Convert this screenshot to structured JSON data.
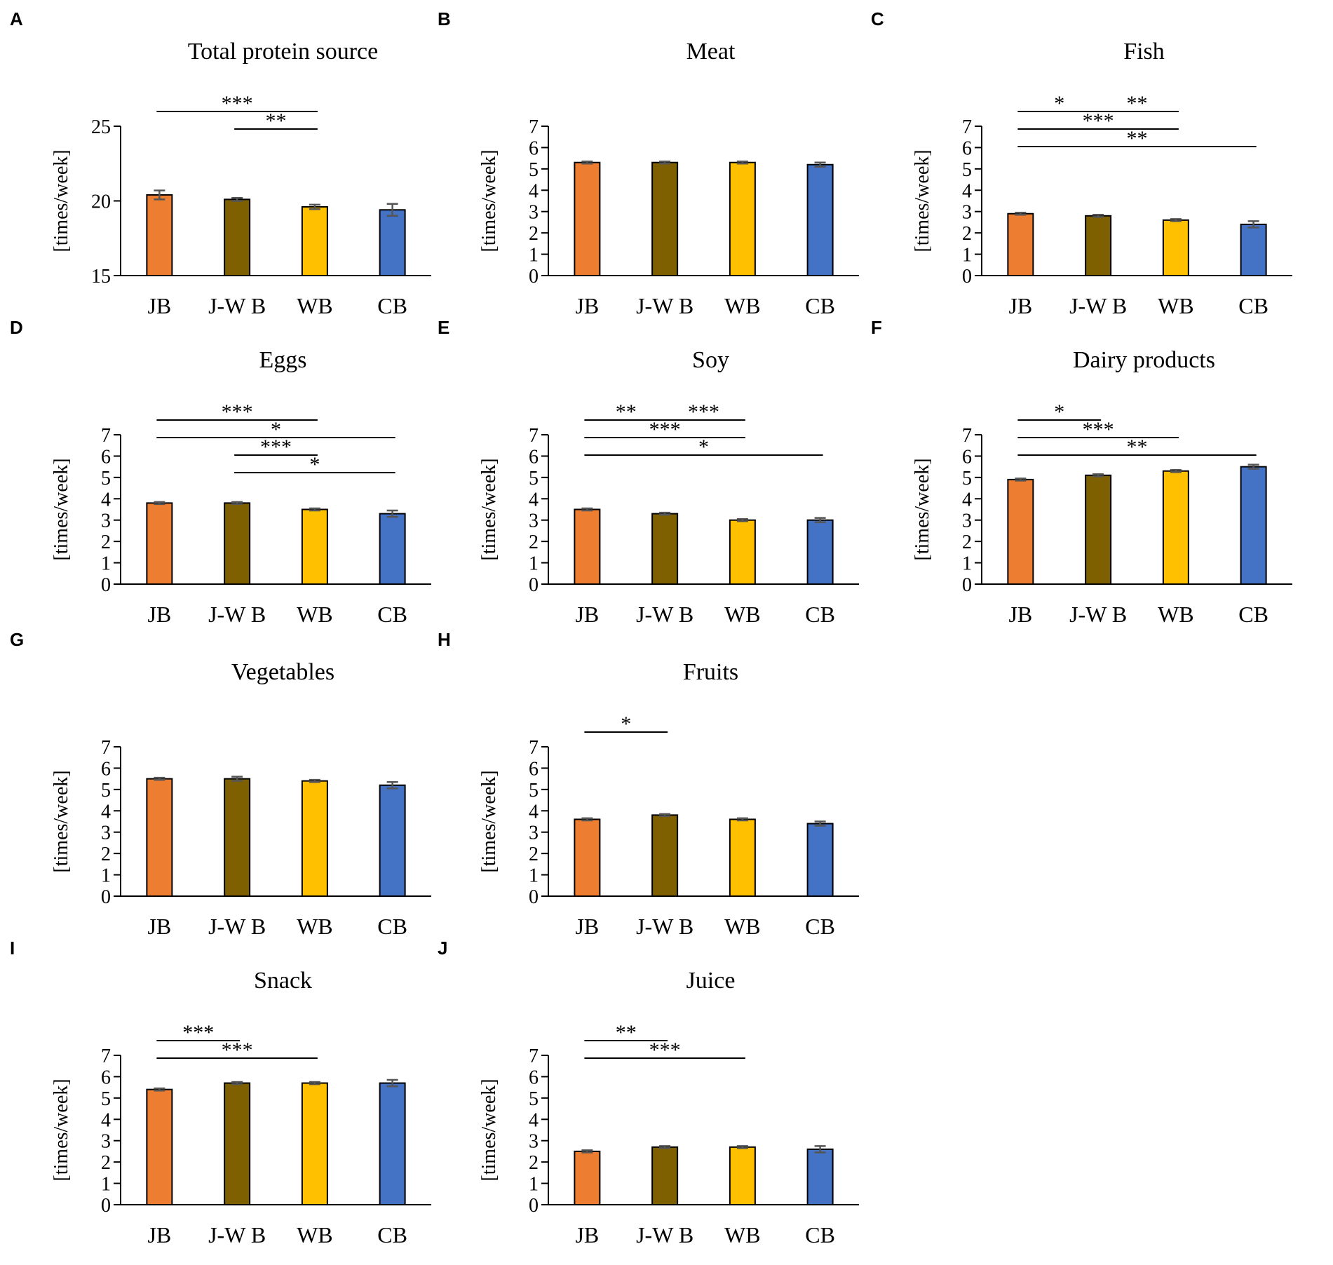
{
  "figure": {
    "width": 1901,
    "height": 1804
  },
  "colors": {
    "JB": "#ED7D31",
    "J-W B": "#7F6000",
    "WB": "#FFC000",
    "CB": "#4472C4"
  },
  "chart_data": [
    {
      "letter": "A",
      "type": "bar",
      "title": "Total protein source",
      "categories": [
        "JB",
        "J-W B",
        "WB",
        "CB"
      ],
      "values": [
        20.4,
        20.1,
        19.6,
        19.4
      ],
      "errors": [
        0.3,
        0.1,
        0.15,
        0.4
      ],
      "ylabel": "[times/week]",
      "ylim": [
        15,
        25
      ],
      "yticks": [
        15,
        20,
        25
      ],
      "significance": [
        {
          "from": 0,
          "to": 2,
          "label": "***"
        },
        {
          "from": 1,
          "to": 2,
          "label": "**"
        }
      ]
    },
    {
      "letter": "B",
      "type": "bar",
      "title": "Meat",
      "categories": [
        "JB",
        "J-W B",
        "WB",
        "CB"
      ],
      "values": [
        5.3,
        5.3,
        5.3,
        5.2
      ],
      "errors": [
        0.05,
        0.05,
        0.05,
        0.1
      ],
      "ylabel": "[times/week]",
      "ylim": [
        0,
        7
      ],
      "yticks": [
        0,
        1,
        2,
        3,
        4,
        5,
        6,
        7
      ],
      "significance": []
    },
    {
      "letter": "C",
      "type": "bar",
      "title": "Fish",
      "categories": [
        "JB",
        "J-W B",
        "WB",
        "CB"
      ],
      "values": [
        2.9,
        2.8,
        2.6,
        2.4
      ],
      "errors": [
        0.05,
        0.05,
        0.05,
        0.15
      ],
      "ylabel": "[times/week]",
      "ylim": [
        0,
        7
      ],
      "yticks": [
        0,
        1,
        2,
        3,
        4,
        5,
        6,
        7
      ],
      "significance": [
        {
          "from": 0,
          "to": 1,
          "label": "*"
        },
        {
          "from": 1,
          "to": 2,
          "label": "**"
        },
        {
          "from": 0,
          "to": 2,
          "label": "***"
        },
        {
          "from": 0,
          "to": 3,
          "label": "**"
        }
      ]
    },
    {
      "letter": "D",
      "type": "bar",
      "title": "Eggs",
      "categories": [
        "JB",
        "J-W B",
        "WB",
        "CB"
      ],
      "values": [
        3.8,
        3.8,
        3.5,
        3.3
      ],
      "errors": [
        0.05,
        0.05,
        0.05,
        0.15
      ],
      "ylabel": "[times/week]",
      "ylim": [
        0,
        7
      ],
      "yticks": [
        0,
        1,
        2,
        3,
        4,
        5,
        6,
        7
      ],
      "significance": [
        {
          "from": 0,
          "to": 2,
          "label": "***"
        },
        {
          "from": 0,
          "to": 3,
          "label": "*"
        },
        {
          "from": 1,
          "to": 2,
          "label": "***"
        },
        {
          "from": 1,
          "to": 3,
          "label": "*"
        }
      ]
    },
    {
      "letter": "E",
      "type": "bar",
      "title": "Soy",
      "categories": [
        "JB",
        "J-W B",
        "WB",
        "CB"
      ],
      "values": [
        3.5,
        3.3,
        3.0,
        3.0
      ],
      "errors": [
        0.05,
        0.05,
        0.05,
        0.1
      ],
      "ylabel": "[times/week]",
      "ylim": [
        0,
        7
      ],
      "yticks": [
        0,
        1,
        2,
        3,
        4,
        5,
        6,
        7
      ],
      "significance": [
        {
          "from": 0,
          "to": 1,
          "label": "**"
        },
        {
          "from": 1,
          "to": 2,
          "label": "***"
        },
        {
          "from": 0,
          "to": 2,
          "label": "***"
        },
        {
          "from": 0,
          "to": 3,
          "label": "*"
        }
      ]
    },
    {
      "letter": "F",
      "type": "bar",
      "title": "Dairy products",
      "categories": [
        "JB",
        "J-W B",
        "WB",
        "CB"
      ],
      "values": [
        4.9,
        5.1,
        5.3,
        5.5
      ],
      "errors": [
        0.05,
        0.05,
        0.05,
        0.1
      ],
      "ylabel": "[times/week]",
      "ylim": [
        0,
        7
      ],
      "yticks": [
        0,
        1,
        2,
        3,
        4,
        5,
        6,
        7
      ],
      "significance": [
        {
          "from": 0,
          "to": 1,
          "label": "*"
        },
        {
          "from": 0,
          "to": 2,
          "label": "***"
        },
        {
          "from": 0,
          "to": 3,
          "label": "**"
        }
      ]
    },
    {
      "letter": "G",
      "type": "bar",
      "title": "Vegetables",
      "categories": [
        "JB",
        "J-W B",
        "WB",
        "CB"
      ],
      "values": [
        5.5,
        5.5,
        5.4,
        5.2
      ],
      "errors": [
        0.05,
        0.1,
        0.05,
        0.15
      ],
      "ylabel": "[times/week]",
      "ylim": [
        0,
        7
      ],
      "yticks": [
        0,
        1,
        2,
        3,
        4,
        5,
        6,
        7
      ],
      "significance": []
    },
    {
      "letter": "H",
      "type": "bar",
      "title": "Fruits",
      "categories": [
        "JB",
        "J-W B",
        "WB",
        "CB"
      ],
      "values": [
        3.6,
        3.8,
        3.6,
        3.4
      ],
      "errors": [
        0.05,
        0.05,
        0.05,
        0.1
      ],
      "ylabel": "[times/week]",
      "ylim": [
        0,
        7
      ],
      "yticks": [
        0,
        1,
        2,
        3,
        4,
        5,
        6,
        7
      ],
      "significance": [
        {
          "from": 0,
          "to": 1,
          "label": "*"
        }
      ]
    },
    {
      "letter": "I",
      "type": "bar",
      "title": "Snack",
      "categories": [
        "JB",
        "J-W B",
        "WB",
        "CB"
      ],
      "values": [
        5.4,
        5.7,
        5.7,
        5.7
      ],
      "errors": [
        0.05,
        0.05,
        0.05,
        0.15
      ],
      "ylabel": "[times/week]",
      "ylim": [
        0,
        7
      ],
      "yticks": [
        0,
        1,
        2,
        3,
        4,
        5,
        6,
        7
      ],
      "significance": [
        {
          "from": 0,
          "to": 1,
          "label": "***"
        },
        {
          "from": 0,
          "to": 2,
          "label": "***"
        }
      ]
    },
    {
      "letter": "J",
      "type": "bar",
      "title": "Juice",
      "categories": [
        "JB",
        "J-W B",
        "WB",
        "CB"
      ],
      "values": [
        2.5,
        2.7,
        2.7,
        2.6
      ],
      "errors": [
        0.05,
        0.05,
        0.05,
        0.15
      ],
      "ylabel": "[times/week]",
      "ylim": [
        0,
        7
      ],
      "yticks": [
        0,
        1,
        2,
        3,
        4,
        5,
        6,
        7
      ],
      "significance": [
        {
          "from": 0,
          "to": 1,
          "label": "**"
        },
        {
          "from": 0,
          "to": 2,
          "label": "***"
        }
      ]
    }
  ]
}
